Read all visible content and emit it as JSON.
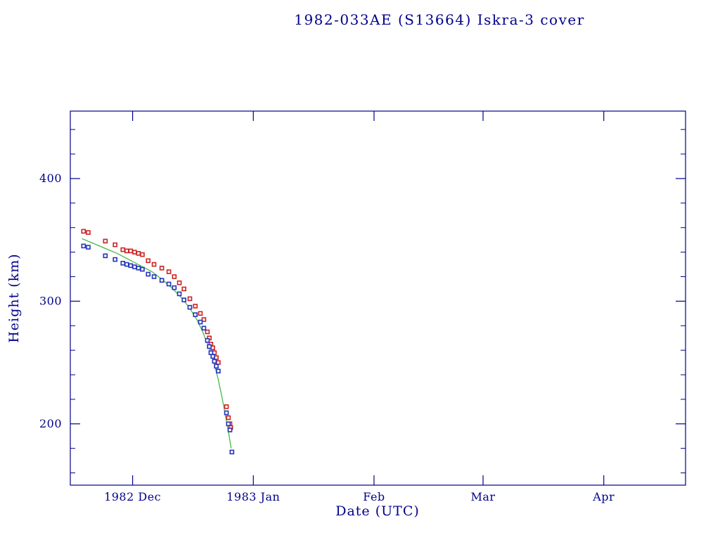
{
  "title": "1982-033AE (S13664) Iskra-3 cover",
  "chart_data": {
    "type": "scatter",
    "title": "1982-033AE (S13664) Iskra-3 cover",
    "xlabel": "Date (UTC)",
    "ylabel": "Height (km)",
    "x_unit": "days from axis start (axis spans mid-Nov 1982 to late Apr 1983)",
    "x_axis": {
      "min": 0,
      "max": 158,
      "major_ticks": [
        {
          "pos": 16,
          "label": "1982 Dec"
        },
        {
          "pos": 47,
          "label": "1983 Jan"
        },
        {
          "pos": 78,
          "label": "Feb"
        },
        {
          "pos": 106,
          "label": "Mar"
        },
        {
          "pos": 137,
          "label": "Apr"
        }
      ]
    },
    "y_axis": {
      "min": 150,
      "max": 455,
      "major_ticks": [
        200,
        300,
        400
      ],
      "minor_step": 20
    },
    "grid": false,
    "legend": "none",
    "colors": {
      "axis": "#00008B",
      "background": "#ffffff"
    },
    "series": [
      {
        "name": "red-squares",
        "color": "#cc2222",
        "marker": "square",
        "points": [
          [
            3.4,
            357
          ],
          [
            4.6,
            356
          ],
          [
            9,
            349
          ],
          [
            11.5,
            346
          ],
          [
            13.5,
            342
          ],
          [
            14.5,
            341
          ],
          [
            15.5,
            341
          ],
          [
            16.5,
            340
          ],
          [
            17.5,
            339
          ],
          [
            18.5,
            338
          ],
          [
            20,
            333
          ],
          [
            21.5,
            330
          ],
          [
            23.5,
            327
          ],
          [
            25.3,
            324
          ],
          [
            26.7,
            320
          ],
          [
            28,
            315
          ],
          [
            29.2,
            310
          ],
          [
            30.7,
            302
          ],
          [
            32.1,
            296
          ],
          [
            33.4,
            290
          ],
          [
            34.3,
            285
          ],
          [
            35.2,
            275
          ],
          [
            35.7,
            270
          ],
          [
            36.1,
            265
          ],
          [
            36.6,
            262
          ],
          [
            37,
            258
          ],
          [
            37.5,
            254
          ],
          [
            38,
            250
          ],
          [
            40.1,
            214
          ],
          [
            40.6,
            205
          ],
          [
            41,
            200
          ],
          [
            41.2,
            197
          ]
        ]
      },
      {
        "name": "blue-squares",
        "color": "#2233bb",
        "marker": "square",
        "points": [
          [
            3.4,
            345
          ],
          [
            4.6,
            344
          ],
          [
            9,
            337
          ],
          [
            11.5,
            334
          ],
          [
            13.5,
            331
          ],
          [
            14.5,
            330
          ],
          [
            15.5,
            329
          ],
          [
            16.5,
            328
          ],
          [
            17.5,
            327
          ],
          [
            18.5,
            326
          ],
          [
            20,
            322
          ],
          [
            21.5,
            320
          ],
          [
            23.5,
            317
          ],
          [
            25.3,
            314
          ],
          [
            26.7,
            311
          ],
          [
            28,
            306
          ],
          [
            29.2,
            301
          ],
          [
            30.7,
            295
          ],
          [
            32.1,
            289
          ],
          [
            33.4,
            283
          ],
          [
            34.3,
            278
          ],
          [
            35.2,
            268
          ],
          [
            35.7,
            263
          ],
          [
            36.1,
            258
          ],
          [
            36.6,
            255
          ],
          [
            37,
            251
          ],
          [
            37.5,
            247
          ],
          [
            38,
            243
          ],
          [
            40.1,
            209
          ],
          [
            40.6,
            200
          ],
          [
            41,
            195
          ],
          [
            41.5,
            177
          ]
        ]
      }
    ],
    "fit_curve": {
      "name": "decay-fit",
      "color": "#44bb44",
      "points": [
        [
          3,
          351
        ],
        [
          6,
          347
        ],
        [
          9,
          343
        ],
        [
          12,
          339
        ],
        [
          15,
          334
        ],
        [
          18,
          329
        ],
        [
          21,
          324
        ],
        [
          23.5,
          318
        ],
        [
          26,
          311
        ],
        [
          28.5,
          303
        ],
        [
          30.5,
          295
        ],
        [
          32.5,
          285
        ],
        [
          34,
          275
        ],
        [
          35.5,
          263
        ],
        [
          36.8,
          251
        ],
        [
          38,
          236
        ],
        [
          39,
          221
        ],
        [
          40,
          204
        ],
        [
          40.8,
          190
        ],
        [
          41.3,
          180
        ]
      ]
    }
  }
}
